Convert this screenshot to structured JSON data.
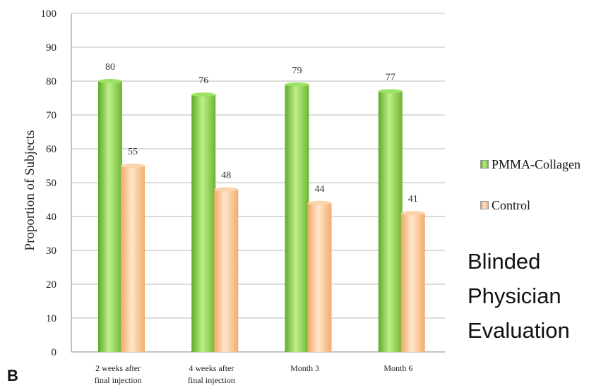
{
  "chart_data": {
    "type": "bar",
    "title": "",
    "xlabel": "",
    "ylabel": "Proportion of Subjects",
    "ylim": [
      0,
      100
    ],
    "yticks": [
      0,
      10,
      20,
      30,
      40,
      50,
      60,
      70,
      80,
      90,
      100
    ],
    "grid": true,
    "legend_position": "right",
    "categories": [
      [
        "2 weeks after",
        "final injection"
      ],
      [
        "4 weeks after",
        "final injection"
      ],
      [
        "Month 3"
      ],
      [
        "Month 6"
      ]
    ],
    "series": [
      {
        "name": "PMMA-Collagen",
        "values": [
          80,
          76,
          79,
          77
        ],
        "color": "#8fd14f"
      },
      {
        "name": "Control",
        "values": [
          55,
          48,
          44,
          41
        ],
        "color": "#f6c08e"
      }
    ]
  },
  "caption": {
    "lines": [
      "Blinded",
      "Physician",
      "Evaluation"
    ]
  },
  "panel_label": "B"
}
